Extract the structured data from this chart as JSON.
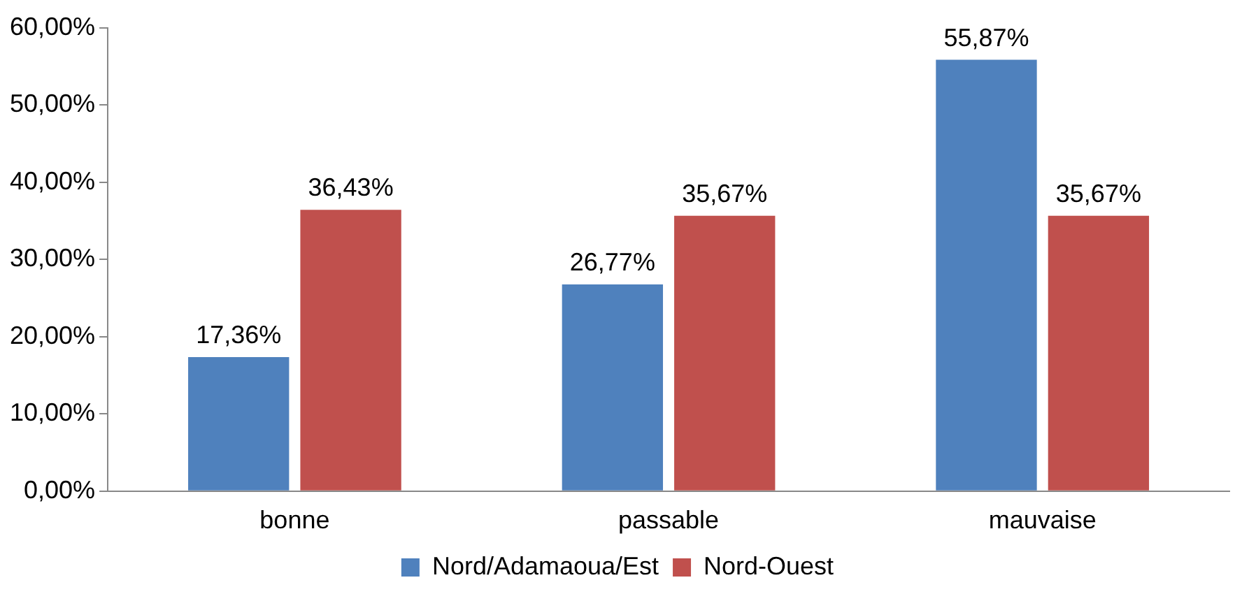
{
  "chart_data": {
    "type": "bar",
    "categories": [
      "bonne",
      "passable",
      "mauvaise"
    ],
    "series": [
      {
        "name": "Nord/Adamaoua/Est",
        "color": "#4f81bd",
        "values": [
          17.36,
          26.77,
          55.87
        ],
        "value_labels": [
          "17,36%",
          "26,77%",
          "55,87%"
        ]
      },
      {
        "name": "Nord-Ouest",
        "color": "#c0504d",
        "values": [
          36.43,
          35.67,
          35.67
        ],
        "value_labels": [
          "36,43%",
          "35,67%",
          "35,67%"
        ]
      }
    ],
    "ylim": [
      0,
      60
    ],
    "yticks": [
      {
        "value": 0,
        "label": "0,00%"
      },
      {
        "value": 10,
        "label": "10,00%"
      },
      {
        "value": 20,
        "label": "20,00%"
      },
      {
        "value": 30,
        "label": "30,00%"
      },
      {
        "value": 40,
        "label": "40,00%"
      },
      {
        "value": 50,
        "label": "50,00%"
      },
      {
        "value": 60,
        "label": "60,00%"
      }
    ],
    "grid": false,
    "legend": "bottom"
  }
}
